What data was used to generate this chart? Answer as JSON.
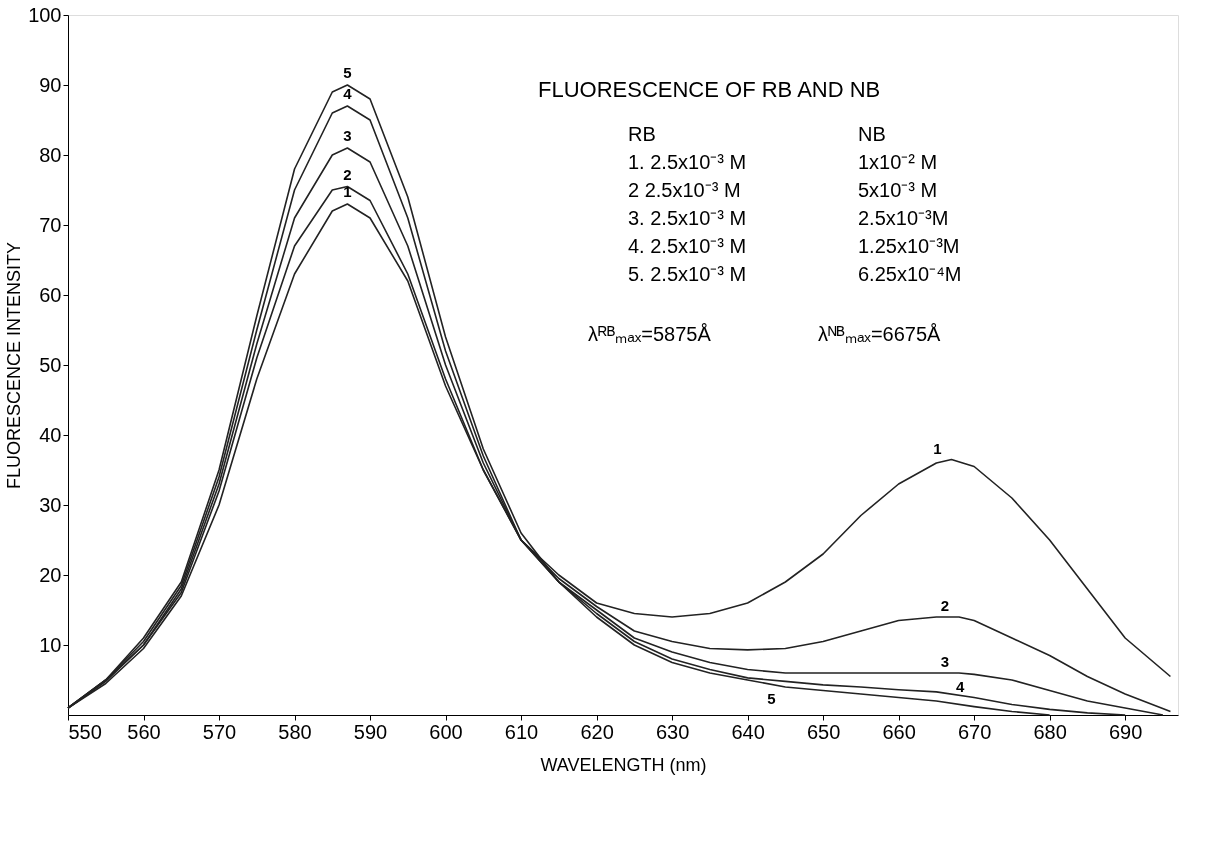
{
  "chart_data": {
    "type": "line",
    "title": "FLUORESCENCE OF RB AND NB",
    "xlabel": "WAVELENGTH (nm)",
    "ylabel": "FLUORESCENCE INTENSITY",
    "xlim": [
      550,
      697
    ],
    "xticks": [
      550,
      560,
      570,
      580,
      590,
      600,
      610,
      620,
      630,
      640,
      650,
      660,
      670,
      680,
      690
    ],
    "ylim": [
      0,
      100
    ],
    "yticks": [
      10,
      20,
      30,
      40,
      50,
      60,
      70,
      80,
      90,
      100
    ],
    "grid": false,
    "legend": false,
    "marker": "none",
    "line_style": "solid",
    "series": [
      {
        "name": "1",
        "color": "#222222",
        "x": [
          550,
          555,
          560,
          565,
          570,
          575,
          580,
          585,
          587,
          590,
          595,
          600,
          605,
          610,
          615,
          620,
          625,
          630,
          635,
          640,
          645,
          650,
          655,
          660,
          665,
          667,
          670,
          675,
          680,
          685,
          690,
          696
        ],
        "values": [
          1,
          4.5,
          9.5,
          17,
          30,
          48,
          63,
          72,
          73,
          71,
          62,
          47,
          35,
          25,
          20,
          16,
          14.5,
          14,
          14.5,
          16,
          19,
          23,
          28.5,
          33,
          36,
          36.5,
          35.5,
          31,
          25,
          18,
          11,
          5.5
        ]
      },
      {
        "name": "2",
        "color": "#222222",
        "x": [
          550,
          555,
          560,
          565,
          570,
          575,
          580,
          585,
          587,
          590,
          595,
          600,
          605,
          610,
          615,
          620,
          625,
          630,
          635,
          640,
          645,
          650,
          655,
          660,
          665,
          668,
          670,
          675,
          680,
          685,
          690,
          696
        ],
        "values": [
          1,
          4.8,
          10,
          17.5,
          32,
          51,
          67,
          75,
          75.5,
          73.5,
          63,
          48,
          35,
          25,
          19.5,
          15.5,
          12,
          10.5,
          9.5,
          9.3,
          9.5,
          10.5,
          12,
          13.5,
          14,
          14,
          13.5,
          11,
          8.5,
          5.5,
          3,
          0.5
        ]
      },
      {
        "name": "3",
        "color": "#222222",
        "x": [
          550,
          555,
          560,
          565,
          570,
          575,
          580,
          585,
          587,
          590,
          595,
          600,
          605,
          610,
          615,
          620,
          625,
          630,
          635,
          640,
          645,
          650,
          655,
          660,
          665,
          668,
          670,
          675,
          680,
          685,
          690,
          695
        ],
        "values": [
          1,
          5,
          10,
          18,
          33,
          53,
          71,
          80,
          81,
          79,
          67,
          50,
          36,
          25,
          19,
          15,
          11,
          9,
          7.5,
          6.5,
          6,
          6,
          6,
          6,
          6,
          6,
          5.8,
          5,
          3.5,
          2,
          1,
          0
        ]
      },
      {
        "name": "4",
        "color": "#222222",
        "x": [
          550,
          555,
          560,
          565,
          570,
          575,
          580,
          585,
          587,
          590,
          595,
          600,
          605,
          610,
          615,
          620,
          625,
          630,
          635,
          640,
          645,
          650,
          655,
          660,
          665,
          670,
          675,
          680,
          685,
          690
        ],
        "values": [
          1,
          5,
          10.5,
          18.5,
          34,
          55,
          75,
          86,
          87,
          85,
          71,
          52,
          37,
          25,
          19,
          14.5,
          10.5,
          8,
          6.5,
          5.3,
          4.8,
          4.3,
          4,
          3.6,
          3.3,
          2.5,
          1.5,
          0.8,
          0.3,
          0
        ]
      },
      {
        "name": "5",
        "color": "#222222",
        "x": [
          550,
          555,
          560,
          565,
          570,
          575,
          580,
          585,
          587,
          590,
          595,
          600,
          605,
          610,
          615,
          620,
          625,
          630,
          635,
          640,
          645,
          650,
          655,
          660,
          665,
          670,
          675,
          680
        ],
        "values": [
          1,
          5,
          11,
          19,
          35,
          57,
          78,
          89,
          90,
          88,
          74,
          54,
          38,
          26,
          19,
          14,
          10,
          7.5,
          6,
          5,
          4,
          3.5,
          3,
          2.5,
          2,
          1.2,
          0.5,
          0
        ]
      }
    ],
    "annotations": [
      "RB",
      "1. 2.5x10⁻³ M",
      "2 2.5x10⁻³ M",
      "3. 2.5x10⁻³ M",
      "4. 2.5x10⁻³ M",
      "5. 2.5x10⁻³ M",
      "NB",
      "1x10⁻² M",
      "5x10⁻³ M",
      "2.5x10⁻³M",
      "1.25x10⁻³M",
      "6.25x10⁻⁴M",
      "λᴿᴮₘₐₓ=5875Å",
      "λᴺᴮₘₐₓ=6675Å",
      "1",
      "2",
      "3",
      "4",
      "5"
    ]
  }
}
